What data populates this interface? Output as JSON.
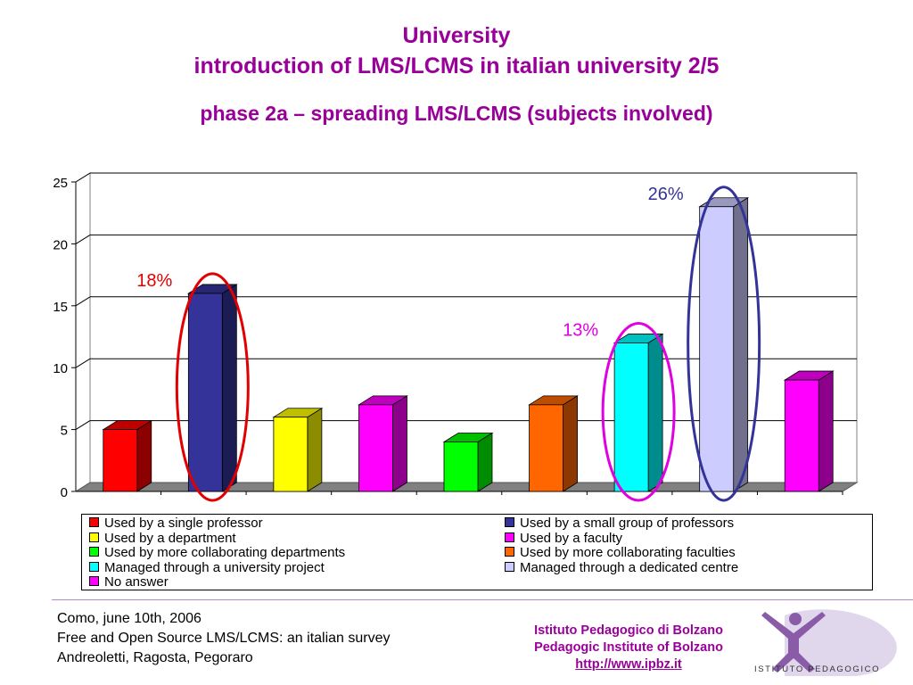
{
  "header": {
    "title": "University",
    "subtitle": "introduction of LMS/LCMS in italian university 2/5",
    "phase": "phase 2a – spreading LMS/LCMS (subjects involved)"
  },
  "chart_data": {
    "type": "bar",
    "title": "",
    "xlabel": "",
    "ylabel": "",
    "ylim": [
      0,
      25
    ],
    "yticks": [
      "0",
      "5",
      "10",
      "15",
      "20",
      "25"
    ],
    "grid": true,
    "legend_position": "bottom",
    "categories": [
      "Used by a single professor",
      "Used by a small group of professors",
      "Used by a department",
      "Used by a faculty",
      "Used by more collaborating departments",
      "Used by more collaborating faculties",
      "Managed through a university project",
      "Managed through a dedicated centre",
      "No answer"
    ],
    "values": [
      5,
      16,
      6,
      7,
      4,
      7,
      12,
      23,
      9
    ],
    "colors": [
      "#ff0000",
      "#333399",
      "#ffff00",
      "#ff00ff",
      "#00ff00",
      "#ff6600",
      "#00ffff",
      "#ccccff",
      "#ff00ff"
    ],
    "annotations": [
      {
        "index": 1,
        "text": "18%",
        "color": "#e00000"
      },
      {
        "index": 6,
        "text": "13%",
        "color": "#e000e0"
      },
      {
        "index": 7,
        "text": "26%",
        "color": "#333399"
      }
    ]
  },
  "footer": {
    "line1": "Como, june 10th, 2006",
    "line2": "Free and Open Source LMS/LCMS: an italian survey",
    "line3": "Andreoletti, Ragosta, Pegoraro",
    "institute_it": "Istituto Pedagogico di Bolzano",
    "institute_en": "Pedagogic Institute of Bolzano",
    "url": "http://www.ipbz.it",
    "logo_text": "ISTITUTO PEDAGOGICO"
  }
}
